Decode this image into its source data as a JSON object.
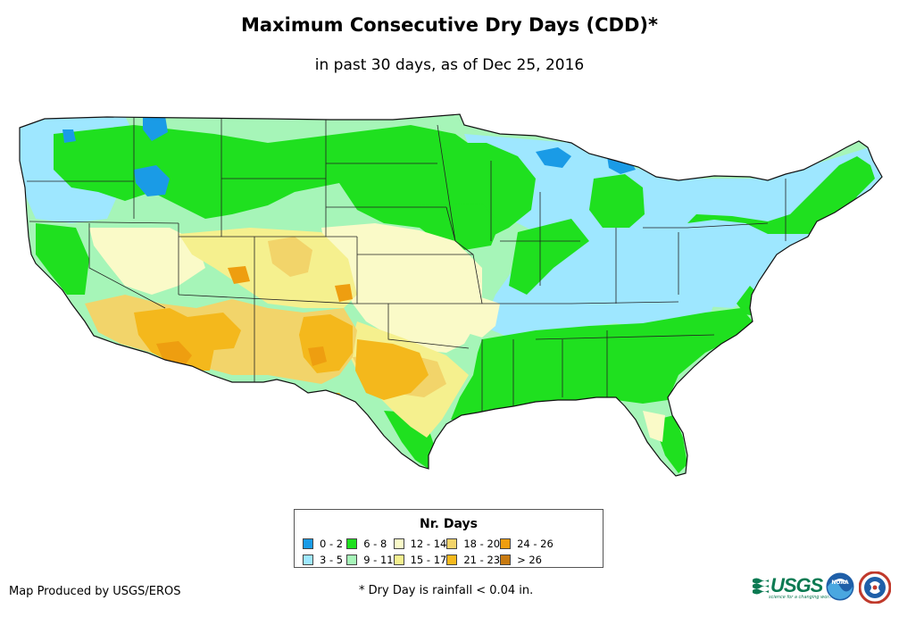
{
  "title": "Maximum Consecutive Dry Days (CDD)*",
  "subtitle": "in past 30 days, as of Dec 25, 2016",
  "legend": {
    "title": "Nr. Days",
    "items": [
      {
        "label": "0 - 2",
        "color": "#1a9be6"
      },
      {
        "label": "6 - 8",
        "color": "#1fe01f"
      },
      {
        "label": "12 - 14",
        "color": "#fafac8"
      },
      {
        "label": "18 - 20",
        "color": "#f2d46a"
      },
      {
        "label": "24 - 26",
        "color": "#ee9e10"
      },
      {
        "label": "3 - 5",
        "color": "#9ee7ff"
      },
      {
        "label": "9 - 11",
        "color": "#a6f5b8"
      },
      {
        "label": "15 - 17",
        "color": "#f5f08e"
      },
      {
        "label": "21 - 23",
        "color": "#f4b81c"
      },
      {
        "label": "> 26",
        "color": "#c87a10"
      }
    ]
  },
  "footer": {
    "credit": "Map Produced by USGS/EROS",
    "note": "* Dry Day is rainfall < 0.04 in."
  },
  "logos": {
    "usgs_wordmark": "USGS",
    "usgs_tagline": "science for a changing world",
    "noaa_text": "NOAA"
  }
}
